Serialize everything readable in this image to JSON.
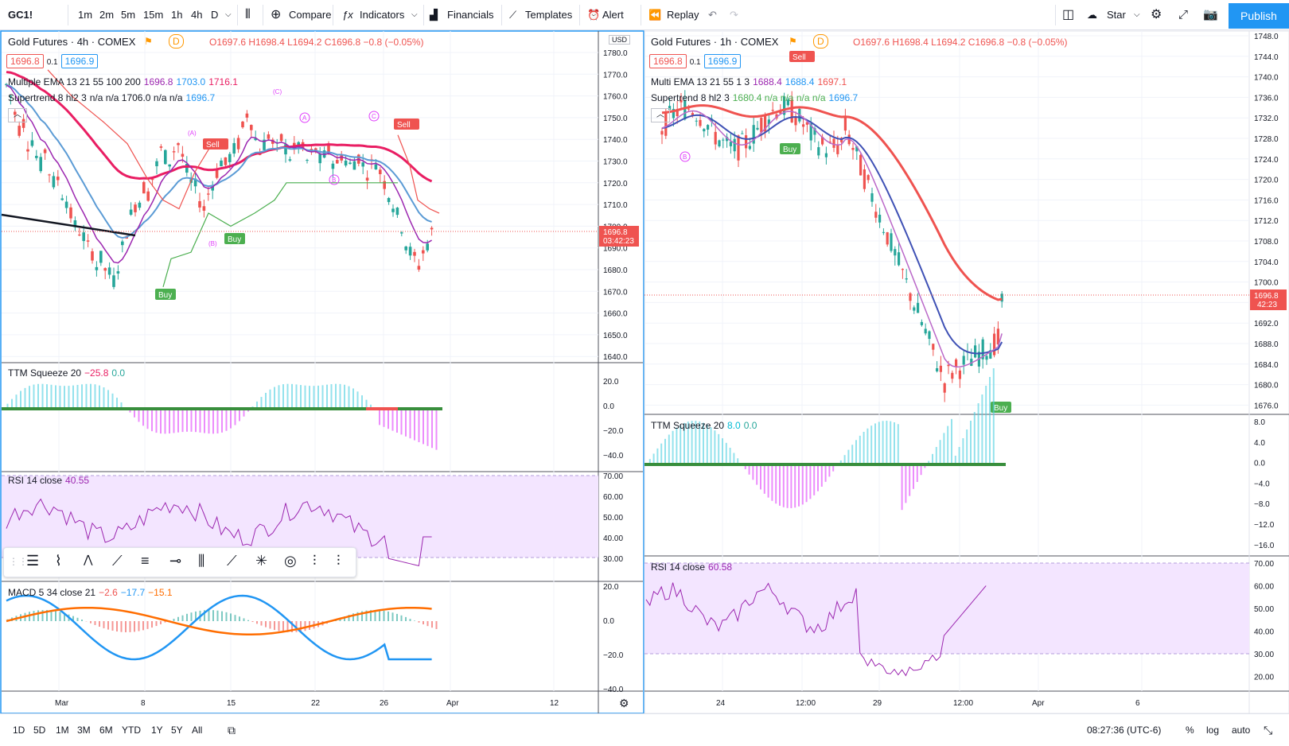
{
  "toolbar": {
    "symbol": "GC1!",
    "intervals": [
      "1m",
      "2m",
      "5m",
      "15m",
      "1h",
      "4h",
      "D"
    ],
    "active_interval": "4h",
    "compare": "Compare",
    "indicators": "Indicators",
    "financials": "Financials",
    "templates": "Templates",
    "alert": "Alert",
    "replay": "Replay",
    "layout_name": "Star",
    "publish": "Publish"
  },
  "left_chart": {
    "title": "Gold Futures · 4h · COMEX",
    "d_badge": "D",
    "ohlc": "O1697.6 H1698.4 L1694.2 C1696.8 −0.8 (−0.05%)",
    "bid": "1696.8",
    "spread": "0.1",
    "ask": "1696.9",
    "ema_name": "Multiple EMA 13 21 55 100 200",
    "ema_vals": [
      "1696.8",
      "1703.0",
      "1716.1"
    ],
    "st_name": "Supertrend 8 hl2 3",
    "st_vals": "n/a n/a 1706.0 n/a n/a",
    "st_last": "1696.7",
    "currency": "USD",
    "price_ticks": [
      "1780.0",
      "1770.0",
      "1760.0",
      "1750.0",
      "1740.0",
      "1730.0",
      "1720.0",
      "1710.0",
      "1700.0",
      "1690.0",
      "1680.0",
      "1670.0",
      "1660.0",
      "1650.0",
      "1640.0"
    ],
    "price_label": "1696.8",
    "countdown": "03:42:23",
    "ttm_name": "TTM Squeeze 20",
    "ttm_vals": [
      "−25.8",
      "0.0"
    ],
    "ttm_ticks": [
      "20.0",
      "0.0",
      "−20.0",
      "−40.0"
    ],
    "rsi_name": "RSI 14 close",
    "rsi_val": "40.55",
    "rsi_ticks": [
      "70.00",
      "60.00",
      "50.00",
      "40.00",
      "30.00"
    ],
    "macd_name": "MACD 5 34 close 21",
    "macd_vals": [
      "−2.6",
      "−17.7",
      "−15.1"
    ],
    "macd_ticks": [
      "20.0",
      "0.0",
      "−20.0",
      "−40.0"
    ],
    "time_ticks": [
      "Mar",
      "8",
      "15",
      "22",
      "26",
      "Apr",
      "12"
    ],
    "markers": {
      "buy1": "Buy",
      "buy2": "Buy",
      "sell": "Sell",
      "sell2": "Sell",
      "a1": "(A)",
      "b1": "(B)",
      "c1": "(C)",
      "a2": "A",
      "b2": "B",
      "c2": "C"
    }
  },
  "right_chart": {
    "title": "Gold Futures · 1h · COMEX",
    "d_badge": "D",
    "ohlc": "O1697.6 H1698.4 L1694.2 C1696.8 −0.8 (−0.05%)",
    "bid": "1696.8",
    "spread": "0.1",
    "ask": "1696.9",
    "ema_name": "Multi EMA 13 21 55 1 3",
    "ema_vals": [
      "1688.4",
      "1688.4",
      "1697.1"
    ],
    "st_name": "Supertrend 8 hl2 3",
    "st_vals": "1680.4 n/a n/a n/a n/a",
    "st_last": "1696.7",
    "price_ticks": [
      "1748.0",
      "1744.0",
      "1740.0",
      "1736.0",
      "1732.0",
      "1728.0",
      "1724.0",
      "1720.0",
      "1716.0",
      "1712.0",
      "1708.0",
      "1704.0",
      "1700.0",
      "1696.0",
      "1692.0",
      "1688.0",
      "1684.0",
      "1680.0",
      "1676.0"
    ],
    "price_label": "1696.8",
    "countdown": "42:23",
    "ttm_name": "TTM Squeeze 20",
    "ttm_vals": [
      "8.0",
      "0.0"
    ],
    "ttm_ticks": [
      "8.0",
      "4.0",
      "0.0",
      "−4.0",
      "−8.0",
      "−12.0",
      "−16.0"
    ],
    "rsi_name": "RSI 14 close",
    "rsi_val": "60.58",
    "rsi_ticks": [
      "70.00",
      "60.00",
      "50.00",
      "40.00",
      "30.00",
      "20.00"
    ],
    "time_ticks": [
      "24",
      "12:00",
      "29",
      "12:00",
      "Apr",
      "6"
    ],
    "markers": {
      "sell": "Sell",
      "buy1": "Buy",
      "buy2": "Buy",
      "b": "B"
    }
  },
  "bottom": {
    "ranges": [
      "1D",
      "5D",
      "1M",
      "3M",
      "6M",
      "YTD",
      "1Y",
      "5Y",
      "All"
    ],
    "time": "08:27:36 (UTC-6)",
    "pct": "%",
    "log": "log",
    "auto": "auto"
  },
  "colors": {
    "accent": "#2196f3",
    "up": "#26a69a",
    "down": "#ef5350",
    "rsi_fill": "#f3e5ff",
    "ema_pink": "#e91e63",
    "ema_blue": "#5b9bd5"
  }
}
